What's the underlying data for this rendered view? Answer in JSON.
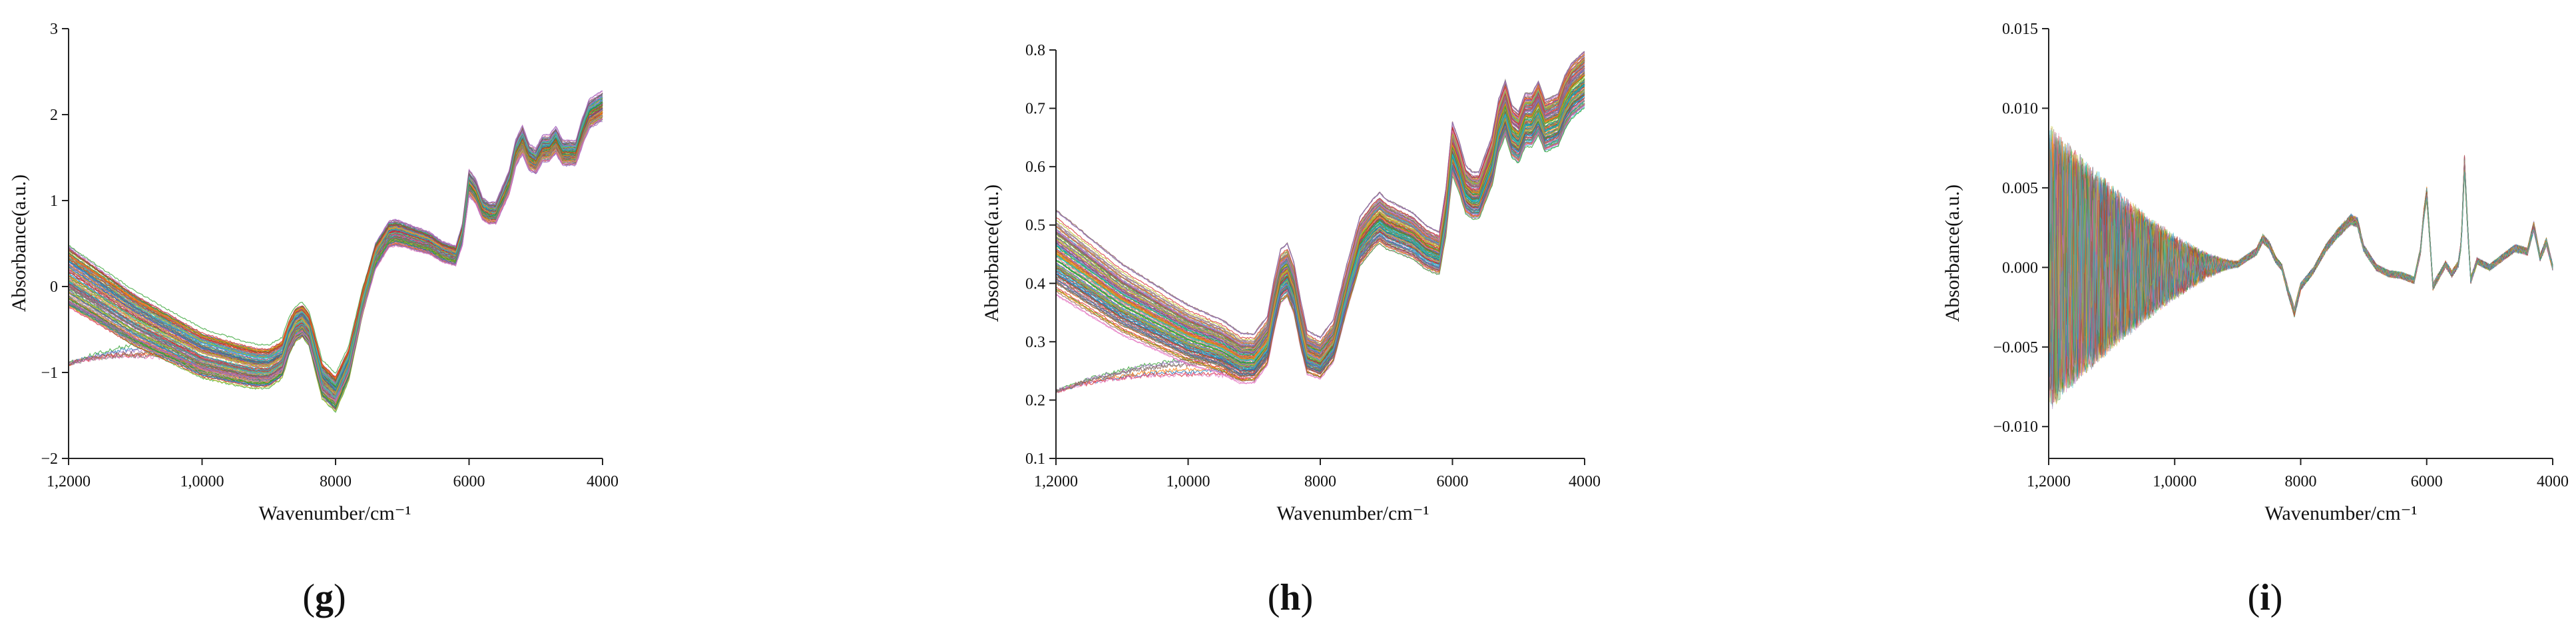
{
  "figure": {
    "panels": [
      {
        "id": "g",
        "label": "g"
      },
      {
        "id": "h",
        "label": "h"
      },
      {
        "id": "i",
        "label": "i"
      }
    ]
  },
  "chart_data": [
    {
      "type": "line",
      "panel": "g",
      "xlabel": "Wavenumber/cm⁻¹",
      "ylabel": "Absorbance(a.u.)",
      "xlim": [
        12000,
        4000
      ],
      "ylim": [
        -2,
        3
      ],
      "xticks": [
        {
          "v": 12000,
          "label": "1,2000"
        },
        {
          "v": 10000,
          "label": "1,0000"
        },
        {
          "v": 8000,
          "label": "8000"
        },
        {
          "v": 6000,
          "label": "6000"
        },
        {
          "v": 4000,
          "label": "4000"
        }
      ],
      "yticks": [
        {
          "v": -2,
          "label": "−2"
        },
        {
          "v": -1,
          "label": "−1"
        },
        {
          "v": 0,
          "label": "0"
        },
        {
          "v": 1,
          "label": "1"
        },
        {
          "v": 2,
          "label": "2"
        },
        {
          "v": 3,
          "label": "3"
        }
      ],
      "n_spectra": 150,
      "base_spectrum": {
        "x": [
          12000,
          11500,
          11000,
          10500,
          10000,
          9500,
          9200,
          9000,
          8800,
          8700,
          8600,
          8500,
          8400,
          8300,
          8200,
          8000,
          7800,
          7600,
          7400,
          7200,
          7100,
          7000,
          6800,
          6600,
          6400,
          6200,
          6100,
          6000,
          5900,
          5800,
          5700,
          5600,
          5400,
          5300,
          5200,
          5100,
          5000,
          4900,
          4800,
          4700,
          4600,
          4400,
          4300,
          4200,
          4100,
          4000
        ],
        "y": [
          0.1,
          -0.15,
          -0.4,
          -0.6,
          -0.8,
          -0.9,
          -0.95,
          -0.95,
          -0.85,
          -0.6,
          -0.45,
          -0.4,
          -0.5,
          -0.8,
          -1.1,
          -1.25,
          -0.9,
          -0.2,
          0.35,
          0.6,
          0.62,
          0.6,
          0.55,
          0.5,
          0.4,
          0.35,
          0.6,
          1.2,
          1.1,
          0.9,
          0.85,
          0.85,
          1.2,
          1.55,
          1.7,
          1.5,
          1.45,
          1.6,
          1.6,
          1.7,
          1.55,
          1.55,
          1.8,
          2.0,
          2.05,
          2.1
        ]
      },
      "outlier_spectra": "group near −0.9 at 1,2000 rising to baseline near 1,0000",
      "colors": [
        "#1f77b4",
        "#ff7f0e",
        "#2ca02c",
        "#d62728",
        "#9467bd",
        "#8c564b",
        "#e377c2",
        "#7f7f7f",
        "#bcbd22",
        "#17becf"
      ]
    },
    {
      "type": "line",
      "panel": "h",
      "xlabel": "Wavenumber/cm⁻¹",
      "ylabel": "Absorbance(a.u.)",
      "xlim": [
        12000,
        4000
      ],
      "ylim": [
        0.1,
        0.8
      ],
      "xticks": [
        {
          "v": 12000,
          "label": "1,2000"
        },
        {
          "v": 10000,
          "label": "1,0000"
        },
        {
          "v": 8000,
          "label": "8000"
        },
        {
          "v": 6000,
          "label": "6000"
        },
        {
          "v": 4000,
          "label": "4000"
        }
      ],
      "yticks": [
        {
          "v": 0.1,
          "label": "0.1"
        },
        {
          "v": 0.2,
          "label": "0.2"
        },
        {
          "v": 0.3,
          "label": "0.3"
        },
        {
          "v": 0.4,
          "label": "0.4"
        },
        {
          "v": 0.5,
          "label": "0.5"
        },
        {
          "v": 0.6,
          "label": "0.6"
        },
        {
          "v": 0.7,
          "label": "0.7"
        },
        {
          "v": 0.8,
          "label": "0.8"
        }
      ],
      "n_spectra": 150,
      "base_spectrum": {
        "x": [
          12000,
          11500,
          11000,
          10500,
          10000,
          9500,
          9200,
          9000,
          8800,
          8700,
          8600,
          8500,
          8400,
          8300,
          8200,
          8000,
          7800,
          7600,
          7400,
          7200,
          7100,
          7000,
          6800,
          6600,
          6400,
          6200,
          6100,
          6000,
          5900,
          5800,
          5700,
          5600,
          5400,
          5300,
          5200,
          5100,
          5000,
          4900,
          4800,
          4700,
          4600,
          4400,
          4300,
          4200,
          4100,
          4000
        ],
        "y": [
          0.45,
          0.41,
          0.37,
          0.34,
          0.31,
          0.29,
          0.27,
          0.27,
          0.3,
          0.36,
          0.41,
          0.42,
          0.39,
          0.33,
          0.28,
          0.27,
          0.3,
          0.39,
          0.47,
          0.5,
          0.51,
          0.5,
          0.49,
          0.48,
          0.46,
          0.45,
          0.52,
          0.63,
          0.6,
          0.56,
          0.55,
          0.55,
          0.61,
          0.67,
          0.7,
          0.66,
          0.65,
          0.68,
          0.68,
          0.7,
          0.67,
          0.68,
          0.71,
          0.73,
          0.74,
          0.75
        ]
      },
      "outlier_spectra": "group near 0.21 at 1,2000 rising to baseline near 9000",
      "colors": [
        "#1f77b4",
        "#ff7f0e",
        "#2ca02c",
        "#d62728",
        "#9467bd",
        "#8c564b",
        "#e377c2",
        "#7f7f7f",
        "#bcbd22",
        "#17becf"
      ]
    },
    {
      "type": "line",
      "panel": "i",
      "xlabel": "Wavenumber/cm⁻¹",
      "ylabel": "Absorbance(a.u.)",
      "xlim": [
        12000,
        4000
      ],
      "ylim": [
        -0.012,
        0.015
      ],
      "xticks": [
        {
          "v": 12000,
          "label": "1,2000"
        },
        {
          "v": 10000,
          "label": "1,0000"
        },
        {
          "v": 8000,
          "label": "8000"
        },
        {
          "v": 6000,
          "label": "6000"
        },
        {
          "v": 4000,
          "label": "4000"
        }
      ],
      "yticks": [
        {
          "v": -0.01,
          "label": "−0.010"
        },
        {
          "v": -0.005,
          "label": "−0.005"
        },
        {
          "v": 0.0,
          "label": "0.000"
        },
        {
          "v": 0.005,
          "label": "0.005"
        },
        {
          "v": 0.01,
          "label": "0.010"
        },
        {
          "v": 0.015,
          "label": "0.015"
        }
      ],
      "n_spectra": 150,
      "base_spectrum": {
        "x": [
          12000,
          10000,
          9000,
          8700,
          8600,
          8500,
          8400,
          8300,
          8200,
          8100,
          8000,
          7800,
          7600,
          7400,
          7200,
          7100,
          7000,
          6800,
          6600,
          6400,
          6200,
          6100,
          6050,
          6000,
          5950,
          5900,
          5700,
          5600,
          5500,
          5450,
          5400,
          5350,
          5300,
          5200,
          5000,
          4800,
          4600,
          4400,
          4300,
          4200,
          4100,
          4000
        ],
        "y": [
          0,
          0,
          0.0002,
          0.001,
          0.0018,
          0.0014,
          0.0005,
          0.0,
          -0.0015,
          -0.0028,
          -0.0012,
          -0.0002,
          0.0012,
          0.0022,
          0.003,
          0.0028,
          0.0012,
          0.0,
          -0.0004,
          -0.0005,
          -0.0008,
          0.001,
          0.0032,
          0.0046,
          0.0018,
          -0.0012,
          0.0002,
          -0.0004,
          0.0002,
          0.0015,
          0.0065,
          0.0025,
          -0.0008,
          0.0004,
          0.0,
          0.0006,
          0.0012,
          0.001,
          0.0026,
          0.0006,
          0.0016,
          0.0
        ]
      },
      "noise_note": "high-frequency noise, amplitude about ±0.009 at 1,2000 decaying to about 0 near 9000",
      "colors": [
        "#1f77b4",
        "#ff7f0e",
        "#2ca02c",
        "#d62728",
        "#9467bd",
        "#8c564b",
        "#e377c2",
        "#7f7f7f",
        "#bcbd22",
        "#17becf"
      ]
    }
  ]
}
